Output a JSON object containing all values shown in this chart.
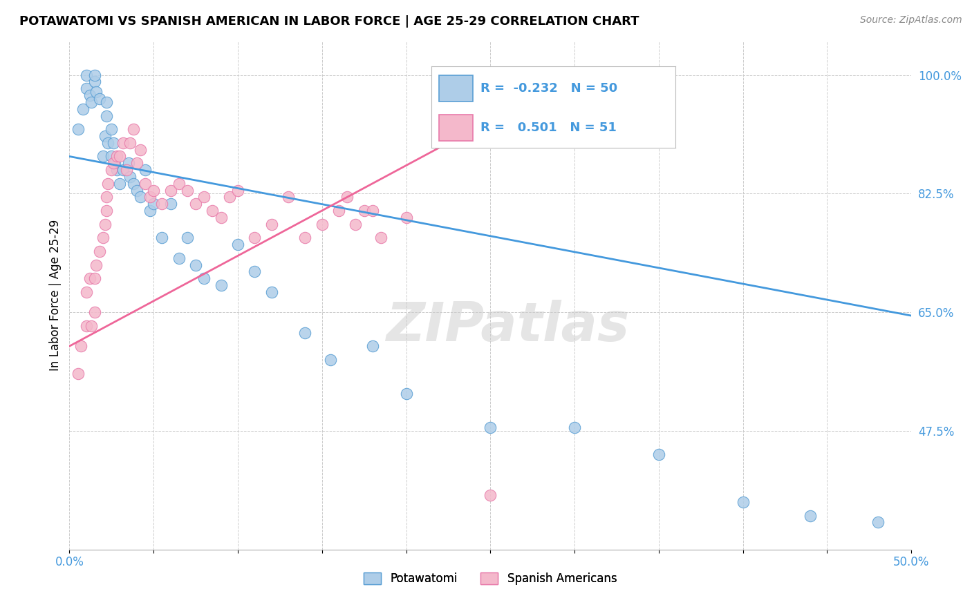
{
  "title": "POTAWATOMI VS SPANISH AMERICAN IN LABOR FORCE | AGE 25-29 CORRELATION CHART",
  "source": "Source: ZipAtlas.com",
  "ylabel": "In Labor Force | Age 25-29",
  "xlim": [
    0.0,
    0.5
  ],
  "ylim": [
    0.3,
    1.05
  ],
  "ytick_positions": [
    0.475,
    0.65,
    0.825,
    1.0
  ],
  "ytick_labels": [
    "47.5%",
    "65.0%",
    "82.5%",
    "100.0%"
  ],
  "blue_R": -0.232,
  "blue_N": 50,
  "pink_R": 0.501,
  "pink_N": 51,
  "blue_color": "#aecde8",
  "pink_color": "#f4b8cb",
  "blue_edge_color": "#5a9fd4",
  "pink_edge_color": "#e87aaa",
  "blue_line_color": "#4499dd",
  "pink_line_color": "#ee6699",
  "legend_labels": [
    "Potawatomi",
    "Spanish Americans"
  ],
  "blue_scatter_x": [
    0.005,
    0.008,
    0.01,
    0.01,
    0.012,
    0.013,
    0.015,
    0.015,
    0.016,
    0.018,
    0.02,
    0.021,
    0.022,
    0.022,
    0.023,
    0.025,
    0.025,
    0.026,
    0.027,
    0.028,
    0.03,
    0.032,
    0.035,
    0.036,
    0.038,
    0.04,
    0.042,
    0.045,
    0.048,
    0.05,
    0.055,
    0.06,
    0.065,
    0.07,
    0.075,
    0.08,
    0.09,
    0.1,
    0.11,
    0.12,
    0.14,
    0.155,
    0.18,
    0.2,
    0.25,
    0.3,
    0.35,
    0.4,
    0.44,
    0.48
  ],
  "blue_scatter_y": [
    0.92,
    0.95,
    0.98,
    1.0,
    0.97,
    0.96,
    0.99,
    1.0,
    0.975,
    0.965,
    0.88,
    0.91,
    0.94,
    0.96,
    0.9,
    0.88,
    0.92,
    0.9,
    0.87,
    0.86,
    0.84,
    0.86,
    0.87,
    0.85,
    0.84,
    0.83,
    0.82,
    0.86,
    0.8,
    0.81,
    0.76,
    0.81,
    0.73,
    0.76,
    0.72,
    0.7,
    0.69,
    0.75,
    0.71,
    0.68,
    0.62,
    0.58,
    0.6,
    0.53,
    0.48,
    0.48,
    0.44,
    0.37,
    0.35,
    0.34
  ],
  "pink_scatter_x": [
    0.005,
    0.007,
    0.01,
    0.01,
    0.012,
    0.013,
    0.015,
    0.015,
    0.016,
    0.018,
    0.02,
    0.021,
    0.022,
    0.022,
    0.023,
    0.025,
    0.026,
    0.028,
    0.03,
    0.032,
    0.034,
    0.036,
    0.038,
    0.04,
    0.042,
    0.045,
    0.048,
    0.05,
    0.055,
    0.06,
    0.065,
    0.07,
    0.075,
    0.08,
    0.085,
    0.09,
    0.095,
    0.1,
    0.11,
    0.12,
    0.13,
    0.14,
    0.15,
    0.16,
    0.165,
    0.17,
    0.175,
    0.18,
    0.185,
    0.2,
    0.25
  ],
  "pink_scatter_y": [
    0.56,
    0.6,
    0.63,
    0.68,
    0.7,
    0.63,
    0.65,
    0.7,
    0.72,
    0.74,
    0.76,
    0.78,
    0.8,
    0.82,
    0.84,
    0.86,
    0.87,
    0.88,
    0.88,
    0.9,
    0.86,
    0.9,
    0.92,
    0.87,
    0.89,
    0.84,
    0.82,
    0.83,
    0.81,
    0.83,
    0.84,
    0.83,
    0.81,
    0.82,
    0.8,
    0.79,
    0.82,
    0.83,
    0.76,
    0.78,
    0.82,
    0.76,
    0.78,
    0.8,
    0.82,
    0.78,
    0.8,
    0.8,
    0.76,
    0.79,
    0.38
  ],
  "blue_trend_x": [
    0.0,
    0.5
  ],
  "blue_trend_y": [
    0.88,
    0.645
  ],
  "pink_trend_x": [
    0.0,
    0.27
  ],
  "pink_trend_y": [
    0.6,
    0.96
  ]
}
